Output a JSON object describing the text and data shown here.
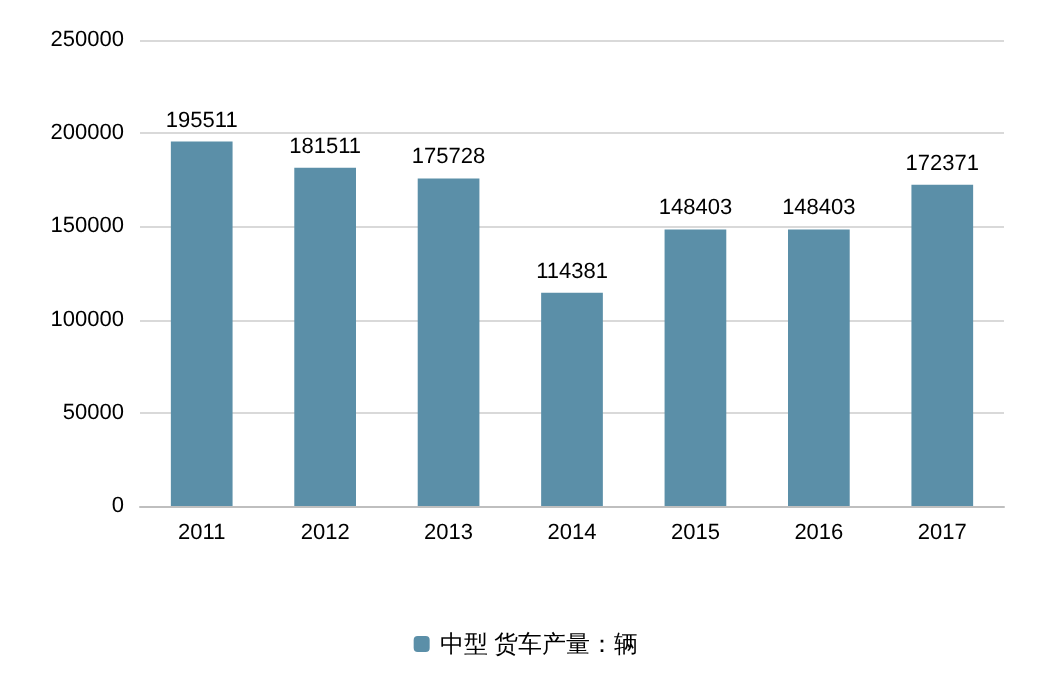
{
  "chart_data": {
    "type": "bar",
    "categories": [
      "2011",
      "2012",
      "2013",
      "2014",
      "2015",
      "2016",
      "2017"
    ],
    "series": [
      {
        "name": "中型 货车产量：辆",
        "color": "#5b8fa8",
        "values": [
          195511,
          181511,
          175728,
          114381,
          148403,
          148403,
          172371
        ]
      }
    ],
    "ylim": [
      0,
      250000
    ],
    "yticks": [
      0,
      50000,
      100000,
      150000,
      200000,
      250000
    ],
    "grid": "y",
    "legend": "bottom",
    "data_labels": true
  }
}
